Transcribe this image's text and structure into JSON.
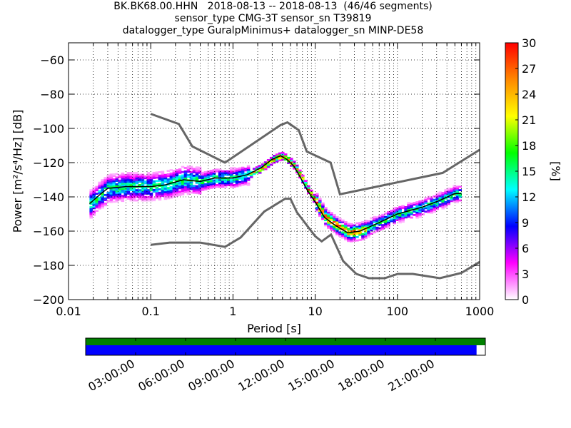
{
  "title_lines": [
    "BK.BK68.00.HHN   2018-08-13 -- 2018-08-13  (46/46 segments)",
    "sensor_type CMG-3T sensor_sn T39819",
    "datalogger_type GuralpMinimus+ datalogger_sn MINP-DE58"
  ],
  "chart_data": {
    "type": "heatmap",
    "subtype": "probabilistic power spectral density",
    "xlabel": "Period [s]",
    "ylabel": "Power [m²/s⁴/Hz] [dB]",
    "x_scale": "log",
    "xlim": [
      0.01,
      1000
    ],
    "ylim": [
      -200,
      -50
    ],
    "x_ticks": [
      0.01,
      0.1,
      1,
      10,
      100,
      1000
    ],
    "x_tick_labels": [
      "0.01",
      "0.1",
      "1",
      "10",
      "100",
      "1000"
    ],
    "y_ticks": [
      -200,
      -180,
      -160,
      -140,
      -120,
      -100,
      -80,
      -60
    ],
    "grid": true,
    "colorbar": {
      "label": "[%]",
      "range": [
        0,
        30
      ],
      "ticks": [
        0,
        3,
        6,
        9,
        12,
        15,
        18,
        21,
        24,
        27,
        30
      ],
      "colors": [
        "#ffffff",
        "#ff00ff",
        "#0000ff",
        "#00ffff",
        "#00ff00",
        "#ffff00",
        "#ff8800",
        "#ff0000"
      ]
    },
    "noise_model_high": [
      [
        0.1,
        -91.5
      ],
      [
        0.22,
        -97.4
      ],
      [
        0.32,
        -110.5
      ],
      [
        0.8,
        -120
      ],
      [
        3.8,
        -98
      ],
      [
        4.6,
        -96.5
      ],
      [
        6.3,
        -101
      ],
      [
        7.9,
        -113.5
      ],
      [
        15.4,
        -120
      ],
      [
        20,
        -138.5
      ],
      [
        354.8,
        -126
      ],
      [
        1000,
        -112.5
      ]
    ],
    "noise_model_low": [
      [
        0.1,
        -168
      ],
      [
        0.17,
        -166.7
      ],
      [
        0.4,
        -166.7
      ],
      [
        0.8,
        -169.2
      ],
      [
        1.24,
        -163.7
      ],
      [
        2.4,
        -148.6
      ],
      [
        4.3,
        -141.1
      ],
      [
        5.0,
        -141.1
      ],
      [
        6.0,
        -149
      ],
      [
        10.0,
        -163
      ],
      [
        12.0,
        -166
      ],
      [
        15.6,
        -162
      ],
      [
        21.9,
        -177.5
      ],
      [
        31.6,
        -185
      ],
      [
        45,
        -187.5
      ],
      [
        70,
        -187.5
      ],
      [
        101,
        -185
      ],
      [
        154,
        -185
      ],
      [
        328,
        -187.5
      ],
      [
        600,
        -184.4
      ],
      [
        1000,
        -178
      ]
    ],
    "median_curve": [
      [
        0.018,
        -144
      ],
      [
        0.025,
        -138
      ],
      [
        0.03,
        -135
      ],
      [
        0.05,
        -134
      ],
      [
        0.1,
        -134
      ],
      [
        0.15,
        -133
      ],
      [
        0.25,
        -130
      ],
      [
        0.4,
        -131
      ],
      [
        0.6,
        -129
      ],
      [
        1,
        -129
      ],
      [
        1.5,
        -127
      ],
      [
        2.2,
        -123
      ],
      [
        3,
        -118
      ],
      [
        3.8,
        -116
      ],
      [
        4.5,
        -118
      ],
      [
        5.5,
        -122
      ],
      [
        6.5,
        -128
      ],
      [
        8,
        -136
      ],
      [
        10,
        -143
      ],
      [
        13,
        -152
      ],
      [
        18,
        -157
      ],
      [
        25,
        -161
      ],
      [
        35,
        -160
      ],
      [
        60,
        -155
      ],
      [
        100,
        -150
      ],
      [
        200,
        -146
      ],
      [
        330,
        -142
      ],
      [
        500,
        -138
      ],
      [
        600,
        -138
      ]
    ]
  },
  "timeline": {
    "tick_labels": [
      "03:00:00",
      "06:00:00",
      "09:00:00",
      "12:00:00",
      "15:00:00",
      "18:00:00",
      "21:00:00"
    ],
    "data_coverage_fraction": 1.0,
    "segment_coverage_fraction": 0.978,
    "coverage_colors": [
      "#008000",
      "#0000ff"
    ]
  }
}
